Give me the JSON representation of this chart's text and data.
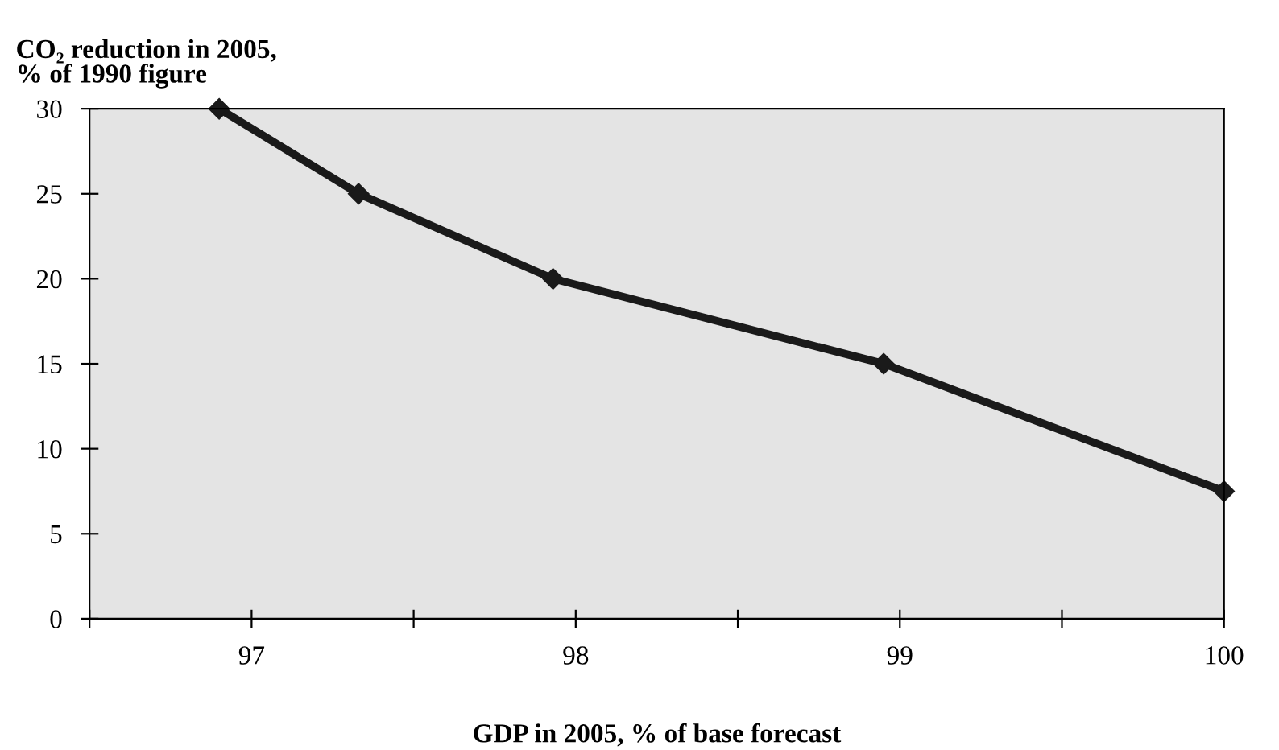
{
  "chart_data": {
    "type": "line",
    "ylabel": "CO₂ reduction in 2005,\n% of 1990 figure",
    "xlabel": "GDP in 2005, % of base forecast",
    "x": [
      96.9,
      97.33,
      97.93,
      98.95,
      100
    ],
    "series": [
      {
        "color": "#1a1a1a",
        "values": [
          30,
          25,
          20,
          15,
          7.5
        ]
      }
    ],
    "marker": "diamond",
    "line_style": "solid",
    "grid": false,
    "legend": false,
    "xlim": [
      96.5,
      100
    ],
    "xticks": [
      {
        "value": 96.5,
        "label": null
      },
      97,
      {
        "value": 97.5,
        "label": null
      },
      98,
      {
        "value": 98.5,
        "label": null
      },
      99,
      {
        "value": 99.5,
        "label": null
      },
      100
    ],
    "ylim": [
      0,
      30
    ],
    "yticks": [
      0,
      5,
      10,
      15,
      20,
      25,
      30
    ]
  }
}
